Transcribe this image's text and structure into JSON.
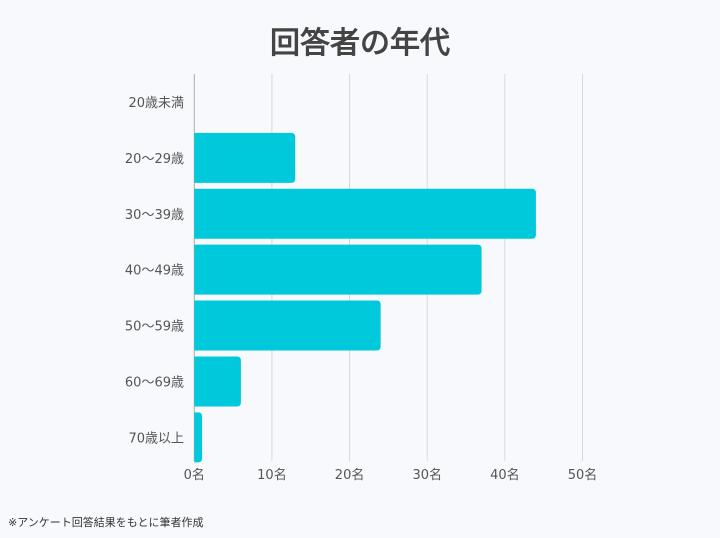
{
  "chart_data": {
    "type": "bar",
    "orientation": "horizontal",
    "title": "回答者の年代",
    "categories": [
      "20歳未満",
      "20〜29歳",
      "30〜39歳",
      "40〜49歳",
      "50〜59歳",
      "60〜69歳",
      "70歳以上"
    ],
    "values": [
      0,
      13,
      44,
      37,
      24,
      6,
      1
    ],
    "xlim": [
      0,
      50
    ],
    "xticks": [
      "0名",
      "10名",
      "20名",
      "30名",
      "40名",
      "50名"
    ],
    "xlabel": "",
    "ylabel": "",
    "grid": true,
    "bar_color": "#00c9db"
  },
  "footnote": "※アンケート回答結果をもとに筆者作成"
}
